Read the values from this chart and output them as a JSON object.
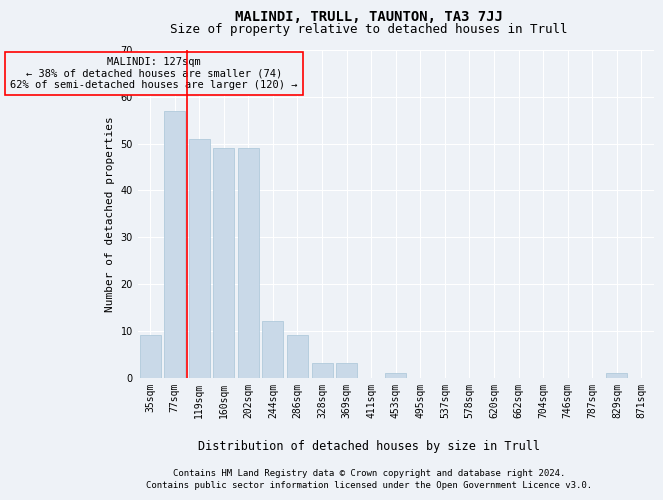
{
  "title": "MALINDI, TRULL, TAUNTON, TA3 7JJ",
  "subtitle": "Size of property relative to detached houses in Trull",
  "xlabel": "Distribution of detached houses by size in Trull",
  "ylabel": "Number of detached properties",
  "categories": [
    "35sqm",
    "77sqm",
    "119sqm",
    "160sqm",
    "202sqm",
    "244sqm",
    "286sqm",
    "328sqm",
    "369sqm",
    "411sqm",
    "453sqm",
    "495sqm",
    "537sqm",
    "578sqm",
    "620sqm",
    "662sqm",
    "704sqm",
    "746sqm",
    "787sqm",
    "829sqm",
    "871sqm"
  ],
  "values": [
    9,
    57,
    51,
    49,
    49,
    12,
    9,
    3,
    3,
    0,
    1,
    0,
    0,
    0,
    0,
    0,
    0,
    0,
    0,
    1,
    0
  ],
  "bar_color": "#c9d9e8",
  "bar_edge_color": "#a8c4d8",
  "ylim": [
    0,
    70
  ],
  "yticks": [
    0,
    10,
    20,
    30,
    40,
    50,
    60,
    70
  ],
  "red_line_index": 2,
  "annotation_text": "MALINDI: 127sqm\n← 38% of detached houses are smaller (74)\n62% of semi-detached houses are larger (120) →",
  "footer_line1": "Contains HM Land Registry data © Crown copyright and database right 2024.",
  "footer_line2": "Contains public sector information licensed under the Open Government Licence v3.0.",
  "background_color": "#eef2f7",
  "grid_color": "#ffffff",
  "title_fontsize": 10,
  "subtitle_fontsize": 9,
  "xlabel_fontsize": 8.5,
  "ylabel_fontsize": 8,
  "tick_fontsize": 7,
  "annotation_fontsize": 7.5,
  "footer_fontsize": 6.5
}
